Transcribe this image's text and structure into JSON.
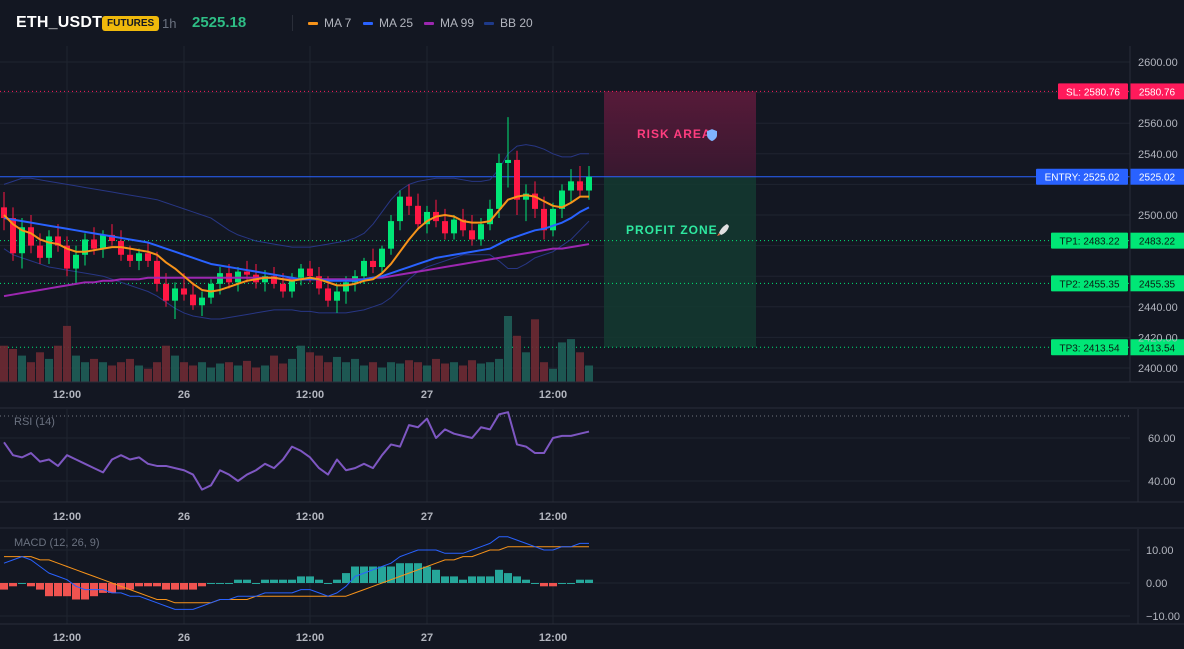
{
  "header": {
    "symbol": "ETH_USDT",
    "badge": "FUTURES",
    "interval": "1h",
    "price": "2525.18"
  },
  "legend": [
    {
      "label": "MA 7",
      "color": "#f7931a"
    },
    {
      "label": "MA 25",
      "color": "#2962ff"
    },
    {
      "label": "MA 99",
      "color": "#9c27b0"
    },
    {
      "label": "BB 20",
      "color": "#1e3a8a"
    }
  ],
  "colors": {
    "up": "#26a69a",
    "up_bright": "#00e676",
    "down": "#ff1744",
    "sl": "#ff1a5b",
    "entry": "#2962ff",
    "tp": "#00e676"
  },
  "chart_data": [
    {
      "type": "candlestick",
      "title": "",
      "yticks": [
        2400,
        2420,
        2440,
        2460,
        2480,
        2500,
        2520,
        2540,
        2560,
        2580,
        2600
      ],
      "ytick_labels": [
        "2400.00",
        "2420.00",
        "2440.00",
        "",
        "",
        "2500.00",
        "",
        "2540.00",
        "2560.00",
        "",
        "2600.00"
      ],
      "ylim": [
        2393,
        2607
      ],
      "xtick_labels": [
        "12:00",
        "26",
        "12:00",
        "27",
        "12:00"
      ],
      "ohlc": [
        [
          2505,
          2515,
          2490,
          2498
        ],
        [
          2498,
          2505,
          2470,
          2475
        ],
        [
          2475,
          2498,
          2465,
          2492
        ],
        [
          2492,
          2500,
          2475,
          2480
        ],
        [
          2480,
          2488,
          2468,
          2472
        ],
        [
          2472,
          2490,
          2468,
          2486
        ],
        [
          2486,
          2494,
          2476,
          2480
        ],
        [
          2480,
          2486,
          2460,
          2465
        ],
        [
          2465,
          2480,
          2455,
          2474
        ],
        [
          2474,
          2488,
          2467,
          2484
        ],
        [
          2484,
          2492,
          2474,
          2478
        ],
        [
          2478,
          2490,
          2472,
          2487
        ],
        [
          2487,
          2494,
          2480,
          2483
        ],
        [
          2483,
          2490,
          2470,
          2474
        ],
        [
          2474,
          2480,
          2466,
          2470
        ],
        [
          2470,
          2478,
          2464,
          2475
        ],
        [
          2475,
          2482,
          2466,
          2470
        ],
        [
          2470,
          2476,
          2450,
          2455
        ],
        [
          2455,
          2462,
          2440,
          2444
        ],
        [
          2444,
          2456,
          2432,
          2452
        ],
        [
          2452,
          2462,
          2444,
          2448
        ],
        [
          2448,
          2456,
          2438,
          2441
        ],
        [
          2441,
          2450,
          2434,
          2446
        ],
        [
          2446,
          2458,
          2442,
          2455
        ],
        [
          2455,
          2466,
          2448,
          2462
        ],
        [
          2462,
          2468,
          2452,
          2456
        ],
        [
          2456,
          2466,
          2450,
          2463
        ],
        [
          2463,
          2470,
          2456,
          2461
        ],
        [
          2461,
          2468,
          2452,
          2456
        ],
        [
          2456,
          2464,
          2450,
          2460
        ],
        [
          2460,
          2466,
          2452,
          2455
        ],
        [
          2455,
          2462,
          2446,
          2450
        ],
        [
          2450,
          2462,
          2446,
          2459
        ],
        [
          2459,
          2468,
          2454,
          2465
        ],
        [
          2465,
          2470,
          2456,
          2460
        ],
        [
          2460,
          2466,
          2448,
          2452
        ],
        [
          2452,
          2460,
          2440,
          2444
        ],
        [
          2444,
          2454,
          2436,
          2450
        ],
        [
          2450,
          2460,
          2442,
          2456
        ],
        [
          2456,
          2464,
          2450,
          2460
        ],
        [
          2460,
          2472,
          2455,
          2470
        ],
        [
          2470,
          2478,
          2462,
          2466
        ],
        [
          2466,
          2480,
          2462,
          2478
        ],
        [
          2478,
          2500,
          2474,
          2496
        ],
        [
          2496,
          2516,
          2490,
          2512
        ],
        [
          2512,
          2520,
          2500,
          2506
        ],
        [
          2506,
          2514,
          2490,
          2494
        ],
        [
          2494,
          2506,
          2488,
          2502
        ],
        [
          2502,
          2510,
          2492,
          2496
        ],
        [
          2496,
          2504,
          2484,
          2488
        ],
        [
          2488,
          2500,
          2484,
          2497
        ],
        [
          2497,
          2504,
          2486,
          2490
        ],
        [
          2490,
          2500,
          2480,
          2484
        ],
        [
          2484,
          2498,
          2480,
          2494
        ],
        [
          2494,
          2510,
          2490,
          2504
        ],
        [
          2504,
          2540,
          2498,
          2534
        ],
        [
          2534,
          2564,
          2518,
          2536
        ],
        [
          2536,
          2542,
          2500,
          2510
        ],
        [
          2510,
          2520,
          2496,
          2514
        ],
        [
          2514,
          2522,
          2498,
          2504
        ],
        [
          2504,
          2512,
          2484,
          2490
        ],
        [
          2490,
          2508,
          2486,
          2504
        ],
        [
          2504,
          2520,
          2498,
          2516
        ],
        [
          2516,
          2530,
          2508,
          2522
        ],
        [
          2522,
          2532,
          2512,
          2516
        ],
        [
          2516,
          2532,
          2510,
          2525
        ]
      ],
      "volume_relative": [
        0.55,
        0.5,
        0.4,
        0.3,
        0.45,
        0.35,
        0.55,
        0.85,
        0.4,
        0.3,
        0.35,
        0.3,
        0.25,
        0.3,
        0.35,
        0.25,
        0.2,
        0.3,
        0.55,
        0.4,
        0.3,
        0.25,
        0.3,
        0.22,
        0.28,
        0.3,
        0.25,
        0.32,
        0.22,
        0.25,
        0.4,
        0.28,
        0.35,
        0.55,
        0.45,
        0.4,
        0.3,
        0.38,
        0.3,
        0.35,
        0.25,
        0.3,
        0.22,
        0.3,
        0.28,
        0.33,
        0.3,
        0.25,
        0.35,
        0.28,
        0.3,
        0.25,
        0.33,
        0.28,
        0.3,
        0.35,
        1.0,
        0.7,
        0.45,
        0.95,
        0.3,
        0.2,
        0.6,
        0.65,
        0.45,
        0.25
      ],
      "ma7": [
        2500,
        2494,
        2490,
        2488,
        2484,
        2482,
        2481,
        2478,
        2476,
        2476,
        2477,
        2478,
        2479,
        2479,
        2478,
        2477,
        2476,
        2474,
        2469,
        2465,
        2460,
        2455,
        2451,
        2450,
        2451,
        2453,
        2455,
        2457,
        2458,
        2459,
        2459,
        2458,
        2457,
        2458,
        2459,
        2458,
        2456,
        2454,
        2454,
        2455,
        2457,
        2458,
        2462,
        2468,
        2476,
        2484,
        2491,
        2496,
        2499,
        2500,
        2499,
        2496,
        2495,
        2495,
        2496,
        2503,
        2510,
        2512,
        2513,
        2512,
        2509,
        2506,
        2505,
        2508,
        2512,
        2512
      ],
      "ma25": [
        2498,
        2497,
        2496,
        2495,
        2494,
        2493,
        2492,
        2491,
        2490,
        2489,
        2488,
        2487,
        2486,
        2485,
        2484,
        2483,
        2482,
        2480,
        2478,
        2476,
        2474,
        2472,
        2470,
        2468,
        2467,
        2466,
        2465,
        2464,
        2463,
        2462,
        2461,
        2460,
        2459,
        2458,
        2458,
        2458,
        2457,
        2457,
        2457,
        2457,
        2458,
        2459,
        2460,
        2462,
        2464,
        2466,
        2468,
        2470,
        2472,
        2473,
        2474,
        2475,
        2476,
        2477,
        2478,
        2481,
        2484,
        2486,
        2488,
        2490,
        2491,
        2493,
        2495,
        2498,
        2502,
        2505
      ],
      "ma99": [
        2447,
        2448,
        2449,
        2450,
        2451,
        2452,
        2453,
        2454,
        2455,
        2456,
        2456,
        2457,
        2457,
        2458,
        2458,
        2458,
        2459,
        2459,
        2459,
        2459,
        2459,
        2459,
        2459,
        2459,
        2459,
        2459,
        2459,
        2459,
        2459,
        2459,
        2459,
        2458,
        2458,
        2458,
        2458,
        2458,
        2458,
        2458,
        2458,
        2458,
        2458,
        2459,
        2459,
        2460,
        2461,
        2462,
        2463,
        2464,
        2465,
        2466,
        2467,
        2468,
        2469,
        2470,
        2471,
        2472,
        2473,
        2474,
        2475,
        2476,
        2477,
        2478,
        2478,
        2479,
        2480,
        2481
      ],
      "bb_upper": [
        2520,
        2522,
        2524,
        2524,
        2523,
        2522,
        2521,
        2520,
        2519,
        2518,
        2517,
        2516,
        2515,
        2514,
        2513,
        2512,
        2511,
        2510,
        2508,
        2506,
        2504,
        2502,
        2500,
        2498,
        2494,
        2490,
        2487,
        2485,
        2483,
        2482,
        2481,
        2480,
        2479,
        2479,
        2479,
        2480,
        2481,
        2482,
        2483,
        2485,
        2488,
        2494,
        2502,
        2510,
        2516,
        2520,
        2522,
        2523,
        2524,
        2524,
        2524,
        2523,
        2522,
        2522,
        2523,
        2530,
        2540,
        2545,
        2546,
        2545,
        2543,
        2540,
        2538,
        2538,
        2540,
        2540
      ],
      "bb_lower": [
        2478,
        2474,
        2472,
        2470,
        2468,
        2466,
        2465,
        2464,
        2463,
        2462,
        2461,
        2460,
        2458,
        2456,
        2454,
        2452,
        2450,
        2447,
        2443,
        2439,
        2436,
        2434,
        2433,
        2432,
        2432,
        2433,
        2434,
        2435,
        2436,
        2437,
        2438,
        2438,
        2438,
        2437,
        2437,
        2436,
        2436,
        2436,
        2436,
        2437,
        2438,
        2440,
        2442,
        2446,
        2452,
        2458,
        2463,
        2466,
        2468,
        2470,
        2472,
        2474,
        2474,
        2474,
        2474,
        2470,
        2465,
        2465,
        2468,
        2472,
        2474,
        2476,
        2480,
        2484,
        2490,
        2496
      ],
      "levels": [
        {
          "label": "SL: 2580.76",
          "value": 2580.76,
          "price_label": "2580.76",
          "kind": "sl"
        },
        {
          "label": "ENTRY: 2525.02",
          "value": 2525.02,
          "price_label": "2525.02",
          "kind": "entry"
        },
        {
          "label": "TP1: 2483.22",
          "value": 2483.22,
          "price_label": "2483.22",
          "kind": "tp"
        },
        {
          "label": "TP2: 2455.35",
          "value": 2455.35,
          "price_label": "2455.35",
          "kind": "tp"
        },
        {
          "label": "TP3: 2413.54",
          "value": 2413.54,
          "price_label": "2413.54",
          "kind": "tp"
        }
      ],
      "zones": [
        {
          "label": "RISK AREA",
          "icon": "shield-icon",
          "from": 2525.02,
          "to": 2580.76
        },
        {
          "label": "PROFIT ZONE",
          "icon": "rocket-icon",
          "from": 2413.54,
          "to": 2525.02
        }
      ]
    },
    {
      "type": "line",
      "title": "RSI (14)",
      "yticks": [
        40,
        60
      ],
      "ytick_labels": [
        "40.00",
        "60.00"
      ],
      "ylim": [
        30,
        78
      ],
      "xtick_labels": [
        "12:00",
        "26",
        "12:00",
        "27",
        "12:00"
      ],
      "values": [
        58,
        52,
        51,
        53,
        49,
        50,
        47,
        52,
        50,
        48,
        46,
        44,
        50,
        52,
        50,
        51,
        48,
        47,
        47,
        46,
        45,
        43,
        36,
        38,
        45,
        43,
        40,
        43,
        45,
        48,
        46,
        50,
        56,
        54,
        51,
        46,
        43,
        50,
        45,
        46,
        48,
        46,
        52,
        57,
        56,
        66,
        65,
        69,
        60,
        64,
        62,
        61,
        60,
        65,
        64,
        71,
        72,
        57,
        56,
        53,
        53,
        60,
        61,
        61,
        62,
        63
      ]
    },
    {
      "type": "line",
      "title": "MACD (12, 26, 9)",
      "yticks": [
        -10,
        0,
        10
      ],
      "ytick_labels": [
        "−10.00",
        "0.00",
        "10.00"
      ],
      "ylim": [
        -14,
        16
      ],
      "xtick_labels": [
        "12:00",
        "26",
        "12:00",
        "27",
        "12:00"
      ],
      "macd": [
        6,
        7,
        8,
        7,
        5,
        3,
        2,
        1,
        -1,
        -2,
        -2,
        -2,
        -3,
        -3,
        -4,
        -4,
        -5,
        -6,
        -7,
        -8,
        -8,
        -8,
        -7,
        -6,
        -5,
        -5,
        -4,
        -4,
        -4,
        -3,
        -3,
        -3,
        -3,
        -2,
        -2,
        -3,
        -4,
        -3,
        -1,
        2,
        3,
        4,
        5,
        6,
        8,
        9,
        10,
        10,
        10,
        9,
        9,
        9,
        10,
        11,
        12,
        14,
        14,
        13,
        12,
        11,
        10,
        10,
        11,
        11,
        12,
        12
      ],
      "signal": [
        8,
        8,
        8,
        8,
        7,
        7,
        6,
        5,
        4,
        3,
        2,
        1,
        0,
        -1,
        -2,
        -3,
        -4,
        -5,
        -5,
        -6,
        -6,
        -6,
        -6,
        -6,
        -5,
        -5,
        -5,
        -5,
        -4,
        -4,
        -4,
        -4,
        -4,
        -4,
        -4,
        -4,
        -4,
        -4,
        -4,
        -3,
        -2,
        -1,
        0,
        1,
        2,
        3,
        4,
        5,
        6,
        7,
        7,
        8,
        8,
        9,
        10,
        10,
        11,
        11,
        11,
        11,
        11,
        11,
        11,
        11,
        11,
        11
      ],
      "histogram": [
        -2,
        -1,
        0,
        -1,
        -2,
        -4,
        -4,
        -4,
        -5,
        -5,
        -4,
        -3,
        -3,
        -2,
        -2,
        -1,
        -1,
        -1,
        -2,
        -2,
        -2,
        -2,
        -1,
        0,
        0,
        0,
        1,
        1,
        0,
        1,
        1,
        1,
        1,
        2,
        2,
        1,
        0,
        1,
        3,
        5,
        5,
        5,
        5,
        5,
        6,
        6,
        6,
        5,
        4,
        2,
        2,
        1,
        2,
        2,
        2,
        4,
        3,
        2,
        1,
        0,
        -1,
        -1,
        0,
        0,
        1,
        1
      ]
    }
  ]
}
